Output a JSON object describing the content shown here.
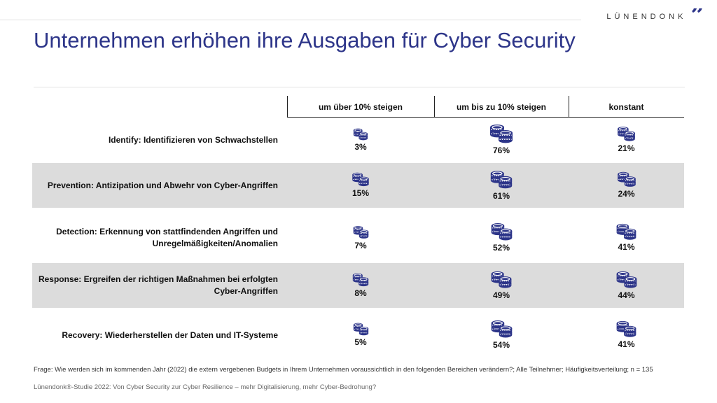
{
  "brand": {
    "name": "LÜNENDONK",
    "quote": "”"
  },
  "title": "Unternehmen erhöhen ihre Ausgaben für Cyber Security",
  "colors": {
    "accent": "#2d3589",
    "row_shade": "#dcdcdc"
  },
  "chart_data": {
    "type": "table",
    "columns": [
      "um über 10% steigen",
      "um bis zu 10% steigen",
      "konstant"
    ],
    "rows": [
      {
        "label": [
          "Identify: Identifizieren von Schwachstellen"
        ],
        "values": [
          "3%",
          "76%",
          "21%"
        ],
        "numbers": [
          3,
          76,
          21
        ]
      },
      {
        "label": [
          "Prevention: Antizipation und Abwehr von Cyber-Angriffen"
        ],
        "values": [
          "15%",
          "61%",
          "24%"
        ],
        "numbers": [
          15,
          61,
          24
        ]
      },
      {
        "label": [
          "Detection: Erkennung von stattfindenden Angriffen und",
          "Unregelmäßigkeiten/Anomalien"
        ],
        "values": [
          "7%",
          "52%",
          "41%"
        ],
        "numbers": [
          7,
          52,
          41
        ]
      },
      {
        "label": [
          "Response: Ergreifen der richtigen Maßnahmen bei erfolgten",
          "Cyber-Angriffen"
        ],
        "values": [
          "8%",
          "49%",
          "44%"
        ],
        "numbers": [
          8,
          49,
          44
        ]
      },
      {
        "label": [
          "Recovery: Wiederherstellen der Daten und IT-Systeme"
        ],
        "values": [
          "5%",
          "54%",
          "41%"
        ],
        "numbers": [
          5,
          54,
          41
        ]
      }
    ],
    "icon": "coin-stack-icon"
  },
  "footnote": "Frage: Wie werden sich im kommenden Jahr (2022) die extern vergebenen Budgets in Ihrem Unternehmen voraussichtlich in den folgenden Bereichen verändern?; Alle Teilnehmer; Häufigkeitsverteilung; n = 135",
  "source": "Lünendonk®-Studie 2022: Von Cyber Security zur Cyber Resilience – mehr Digitalisierung, mehr Cyber-Bedrohung?"
}
